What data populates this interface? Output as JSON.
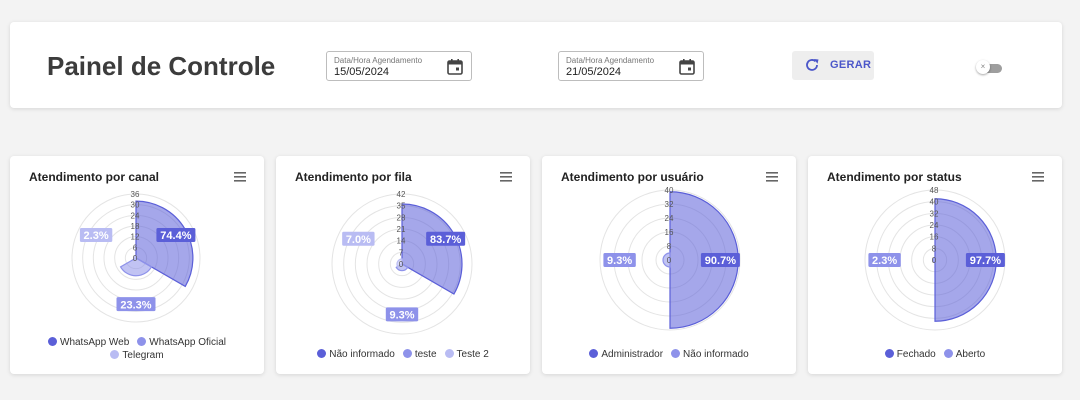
{
  "header": {
    "title": "Painel de Controle",
    "date_start": {
      "label": "Data/Hora Agendamento",
      "value": "15/05/2024",
      "icon": "calendar-icon"
    },
    "date_end": {
      "label": "Data/Hora Agendamento",
      "value": "21/05/2024",
      "icon": "calendar-icon"
    },
    "generate_label": "GERAR",
    "generate_icon": "refresh-icon",
    "toggle_icon": "×"
  },
  "colors": {
    "s1": "#5b5fd8",
    "s2": "#8e92ea",
    "s3": "#b9bcf3",
    "accent": "#4b56c9"
  },
  "charts": [
    {
      "title": "Atendimento por canal",
      "ticks": [
        "36",
        "30",
        "24",
        "18",
        "12",
        "6",
        "0"
      ],
      "max": 36,
      "legend": [
        "WhatsApp Web",
        "WhatsApp Oficial",
        "Telegram"
      ],
      "chart_data": {
        "type": "polarArea",
        "categories": [
          "WhatsApp Web",
          "WhatsApp Oficial",
          "Telegram"
        ],
        "values": [
          32,
          10,
          1
        ],
        "percent_labels": [
          "74.4%",
          "23.3%",
          "2.3%"
        ]
      }
    },
    {
      "title": "Atendimento por fila",
      "ticks": [
        "42",
        "35",
        "28",
        "21",
        "14",
        "7",
        "0"
      ],
      "max": 42,
      "legend": [
        "Não informado",
        "teste",
        "Teste 2"
      ],
      "chart_data": {
        "type": "polarArea",
        "categories": [
          "Não informado",
          "teste",
          "Teste 2"
        ],
        "values": [
          36,
          4,
          3
        ],
        "percent_labels": [
          "83.7%",
          "9.3%",
          "7.0%"
        ]
      }
    },
    {
      "title": "Atendimento por usuário",
      "ticks": [
        "40",
        "32",
        "24",
        "16",
        "8",
        "0"
      ],
      "max": 40,
      "legend": [
        "Administrador",
        "Não informado"
      ],
      "chart_data": {
        "type": "polarArea",
        "categories": [
          "Administrador",
          "Não informado"
        ],
        "values": [
          39,
          4
        ],
        "percent_labels": [
          "90.7%",
          "9.3%"
        ]
      }
    },
    {
      "title": "Atendimento por status",
      "ticks": [
        "48",
        "40",
        "32",
        "24",
        "16",
        "8",
        "0"
      ],
      "max": 48,
      "legend": [
        "Fechado",
        "Aberto"
      ],
      "chart_data": {
        "type": "polarArea",
        "categories": [
          "Fechado",
          "Aberto"
        ],
        "values": [
          42,
          1
        ],
        "percent_labels": [
          "97.7%",
          "2.3%"
        ]
      }
    }
  ]
}
